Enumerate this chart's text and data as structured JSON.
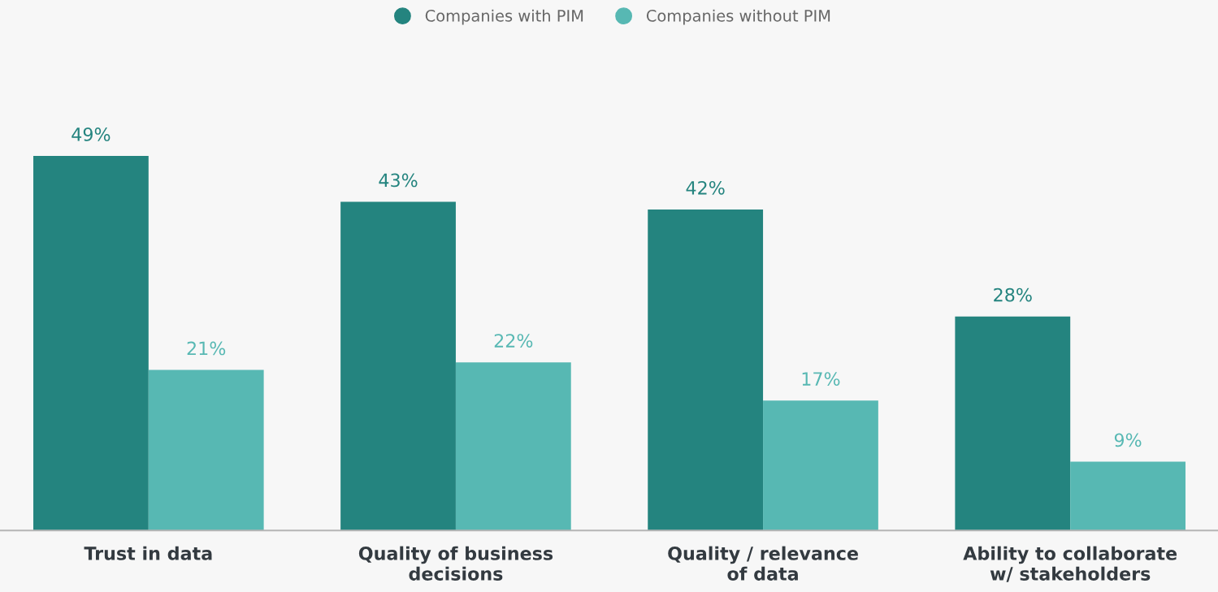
{
  "chart_data": {
    "type": "bar",
    "categories": [
      "Trust in data",
      "Quality of business\ndecisions",
      "Quality / relevance\nof data",
      "Ability to collaborate\nw/ stakeholders"
    ],
    "series": [
      {
        "name": "Companies with PIM",
        "color": "#24847f",
        "values": [
          49,
          43,
          42,
          28
        ],
        "value_labels": [
          "49%",
          "43%",
          "42%",
          "28%"
        ]
      },
      {
        "name": "Companies without PIM",
        "color": "#57b8b3",
        "values": [
          21,
          22,
          17,
          9
        ],
        "value_labels": [
          "21%",
          "22%",
          "17%",
          "9%"
        ]
      }
    ],
    "legend": "top"
  }
}
